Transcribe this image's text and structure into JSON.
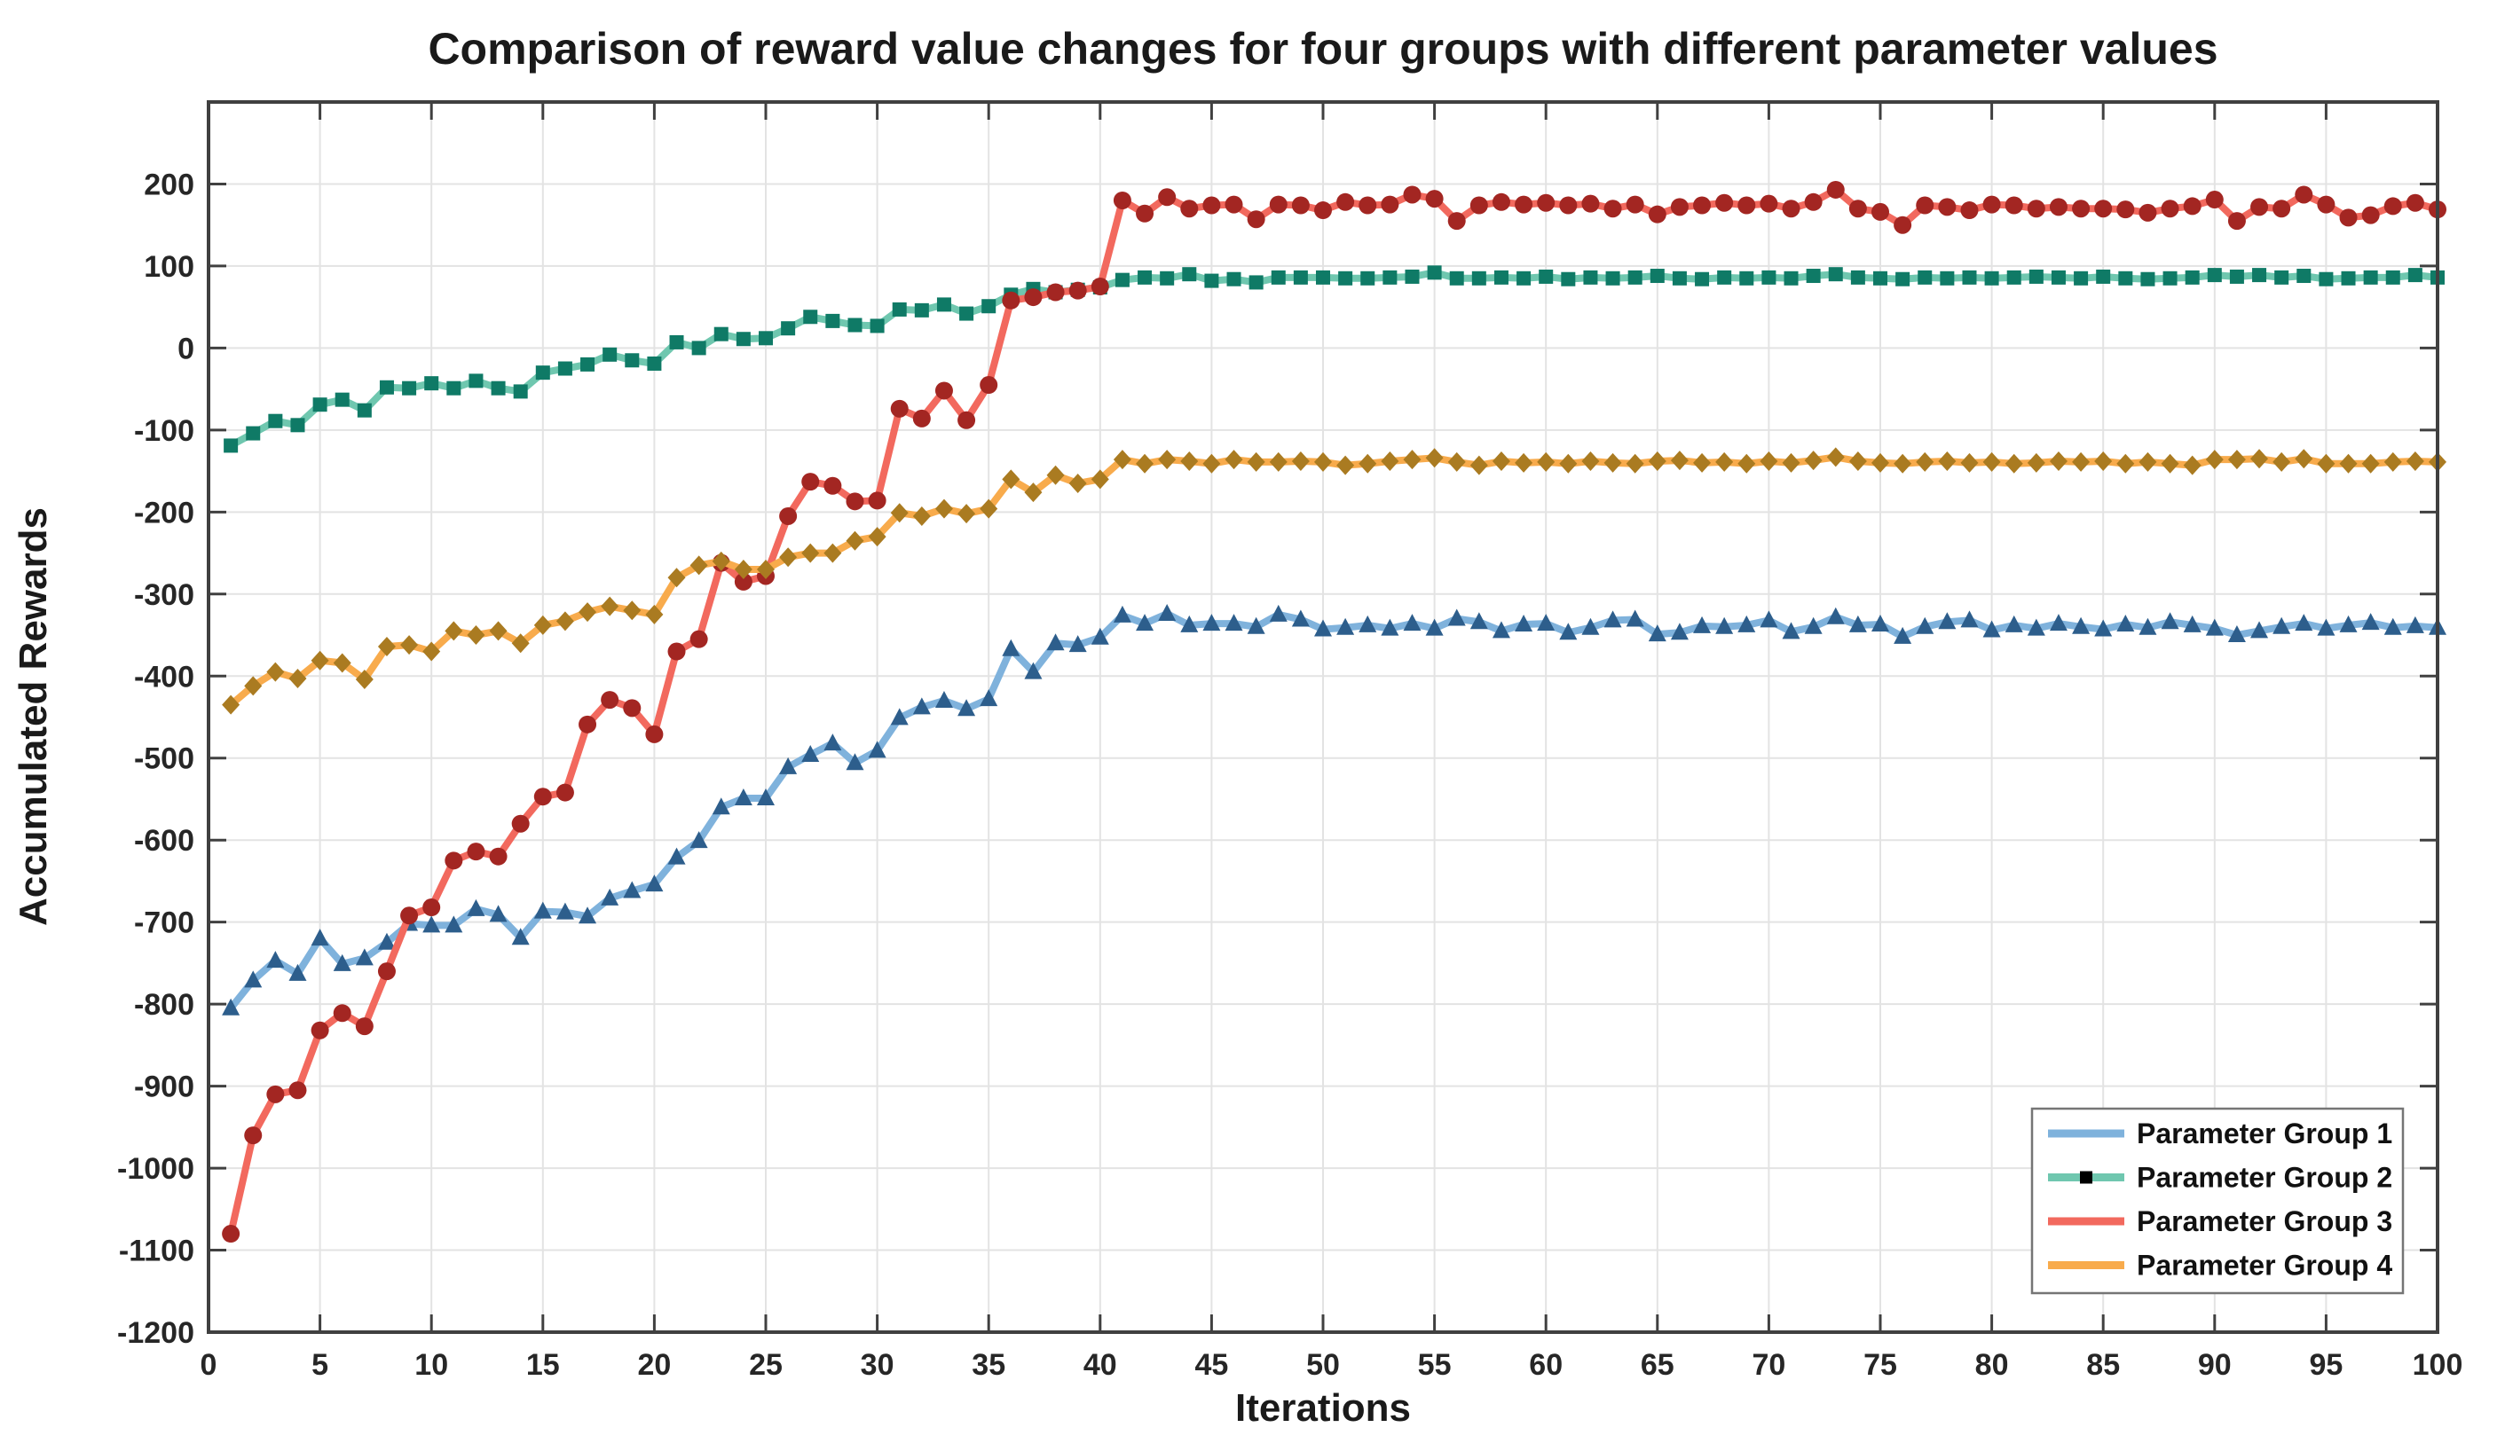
{
  "chart_data": {
    "type": "line",
    "title": "Comparison of reward value changes for four groups with different parameter values",
    "xlabel": "Iterations",
    "ylabel": "Accumulated Rewards",
    "xlim": [
      0,
      100
    ],
    "ylim": [
      -1200,
      300
    ],
    "x_ticks": [
      0,
      5,
      10,
      15,
      20,
      25,
      30,
      35,
      40,
      45,
      50,
      55,
      60,
      65,
      70,
      75,
      80,
      85,
      90,
      95,
      100
    ],
    "y_ticks": [
      -1200,
      -1100,
      -1000,
      -900,
      -800,
      -700,
      -600,
      -500,
      -400,
      -300,
      -200,
      -100,
      0,
      100,
      200
    ],
    "grid": true,
    "legend_position": "lower right",
    "colors": {
      "grid": "#e3e3e3",
      "axis_box": "#404040",
      "tick": "#404040",
      "legend_border": "#757575",
      "legend_bg": "#ffffff"
    },
    "x": [
      1,
      2,
      3,
      4,
      5,
      6,
      7,
      8,
      9,
      10,
      11,
      12,
      13,
      14,
      15,
      16,
      17,
      18,
      19,
      20,
      21,
      22,
      23,
      24,
      25,
      26,
      27,
      28,
      29,
      30,
      31,
      32,
      33,
      34,
      35,
      36,
      37,
      38,
      39,
      40,
      41,
      42,
      43,
      44,
      45,
      46,
      47,
      48,
      49,
      50,
      51,
      52,
      53,
      54,
      55,
      56,
      57,
      58,
      59,
      60,
      61,
      62,
      63,
      64,
      65,
      66,
      67,
      68,
      69,
      70,
      71,
      72,
      73,
      74,
      75,
      76,
      77,
      78,
      79,
      80,
      81,
      82,
      83,
      84,
      85,
      86,
      87,
      88,
      89,
      90,
      91,
      92,
      93,
      94,
      95,
      96,
      97,
      98,
      99,
      100
    ],
    "series": [
      {
        "name": "Parameter Group 1",
        "line_color": "#7fb2dc",
        "marker_color": "#2d5e8c",
        "marker": "triangle",
        "values": [
          -805,
          -771,
          -747,
          -763,
          -720,
          -751,
          -744,
          -725,
          -702,
          -704,
          -704,
          -684,
          -691,
          -719,
          -687,
          -688,
          -693,
          -671,
          -662,
          -654,
          -621,
          -601,
          -560,
          -549,
          -549,
          -511,
          -496,
          -482,
          -506,
          -491,
          -451,
          -438,
          -430,
          -440,
          -428,
          -367,
          -395,
          -360,
          -362,
          -353,
          -326,
          -336,
          -324,
          -338,
          -336,
          -336,
          -340,
          -325,
          -331,
          -343,
          -341,
          -338,
          -342,
          -336,
          -342,
          -330,
          -334,
          -345,
          -337,
          -336,
          -347,
          -341,
          -332,
          -331,
          -349,
          -347,
          -339,
          -340,
          -338,
          -332,
          -346,
          -340,
          -328,
          -338,
          -337,
          -352,
          -340,
          -334,
          -332,
          -344,
          -338,
          -342,
          -336,
          -340,
          -343,
          -337,
          -341,
          -334,
          -338,
          -342,
          -350,
          -345,
          -340,
          -336,
          -342,
          -338,
          -335,
          -341,
          -339,
          -341
        ]
      },
      {
        "name": "Parameter Group 2",
        "line_color": "#6fc7af",
        "marker_color": "#0f7a66",
        "legend_marker_color": "#000000",
        "marker": "square",
        "values": [
          -119,
          -104,
          -89,
          -94,
          -69,
          -63,
          -76,
          -48,
          -49,
          -43,
          -49,
          -40,
          -49,
          -53,
          -30,
          -25,
          -20,
          -8,
          -15,
          -19,
          7,
          0,
          17,
          11,
          12,
          24,
          38,
          33,
          28,
          27,
          47,
          46,
          53,
          42,
          51,
          65,
          72,
          68,
          71,
          74,
          83,
          86,
          85,
          90,
          82,
          84,
          80,
          86,
          86,
          86,
          85,
          85,
          86,
          87,
          92,
          85,
          85,
          86,
          85,
          87,
          84,
          86,
          85,
          86,
          88,
          85,
          84,
          86,
          85,
          86,
          85,
          88,
          90,
          86,
          85,
          84,
          86,
          85,
          86,
          85,
          86,
          87,
          86,
          85,
          87,
          85,
          84,
          85,
          86,
          89,
          87,
          89,
          86,
          88,
          84,
          85,
          86,
          86,
          89,
          86
        ]
      },
      {
        "name": "Parameter Group 3",
        "line_color": "#f2695e",
        "marker_color": "#a32622",
        "marker": "circle",
        "values": [
          -1080,
          -960,
          -910,
          -905,
          -832,
          -811,
          -827,
          -760,
          -692,
          -682,
          -625,
          -614,
          -620,
          -580,
          -547,
          -542,
          -459,
          -429,
          -439,
          -471,
          -370,
          -355,
          -262,
          -285,
          -278,
          -205,
          -163,
          -168,
          -187,
          -186,
          -74,
          -86,
          -52,
          -88,
          -45,
          58,
          62,
          68,
          70,
          75,
          180,
          164,
          184,
          170,
          174,
          175,
          157,
          175,
          174,
          168,
          178,
          174,
          175,
          187,
          182,
          155,
          174,
          178,
          175,
          177,
          174,
          176,
          170,
          175,
          163,
          172,
          174,
          177,
          174,
          176,
          170,
          178,
          193,
          170,
          166,
          150,
          174,
          172,
          168,
          175,
          174,
          170,
          172,
          170,
          170,
          169,
          165,
          170,
          173,
          181,
          155,
          172,
          170,
          187,
          175,
          159,
          162,
          173,
          177,
          169
        ]
      },
      {
        "name": "Parameter Group 4",
        "line_color": "#f8ab4c",
        "marker_color": "#aa7b21",
        "marker": "diamond",
        "values": [
          -435,
          -412,
          -395,
          -403,
          -381,
          -384,
          -404,
          -364,
          -362,
          -370,
          -345,
          -350,
          -345,
          -360,
          -338,
          -333,
          -322,
          -315,
          -320,
          -325,
          -280,
          -265,
          -260,
          -270,
          -270,
          -255,
          -250,
          -250,
          -235,
          -230,
          -201,
          -205,
          -196,
          -202,
          -196,
          -160,
          -176,
          -155,
          -165,
          -160,
          -136,
          -141,
          -136,
          -138,
          -141,
          -136,
          -139,
          -139,
          -138,
          -139,
          -143,
          -141,
          -138,
          -136,
          -134,
          -139,
          -143,
          -138,
          -140,
          -139,
          -141,
          -138,
          -140,
          -141,
          -138,
          -137,
          -140,
          -139,
          -141,
          -138,
          -140,
          -137,
          -133,
          -138,
          -140,
          -141,
          -139,
          -138,
          -140,
          -139,
          -141,
          -140,
          -138,
          -139,
          -138,
          -141,
          -139,
          -141,
          -143,
          -136,
          -136,
          -135,
          -139,
          -135,
          -141,
          -141,
          -141,
          -139,
          -138,
          -139
        ]
      }
    ]
  }
}
